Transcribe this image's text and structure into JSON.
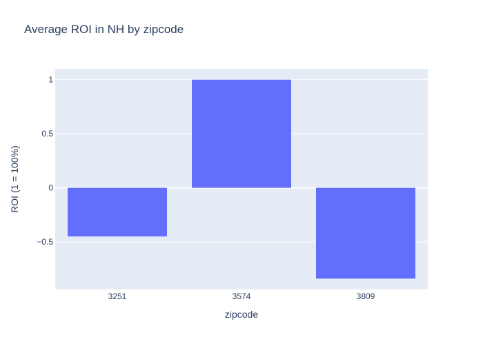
{
  "chart_data": {
    "type": "bar",
    "title": "Average ROI in NH by zipcode",
    "xlabel": "zipcode",
    "ylabel": "ROI (1 = 100%)",
    "categories": [
      "3251",
      "3574",
      "3809"
    ],
    "values": [
      -0.45,
      1.0,
      -0.84
    ],
    "ylim": [
      -0.94,
      1.1
    ],
    "yticks": [
      -0.5,
      0,
      0.5,
      1
    ],
    "ytick_labels": [
      "−0.5",
      "0",
      "0.5",
      "1"
    ],
    "grid": true,
    "colors": {
      "bar": "#636efa",
      "plot_bg": "#e5ecf6",
      "grid": "#ffffff",
      "text": "#2a3f5f"
    }
  }
}
